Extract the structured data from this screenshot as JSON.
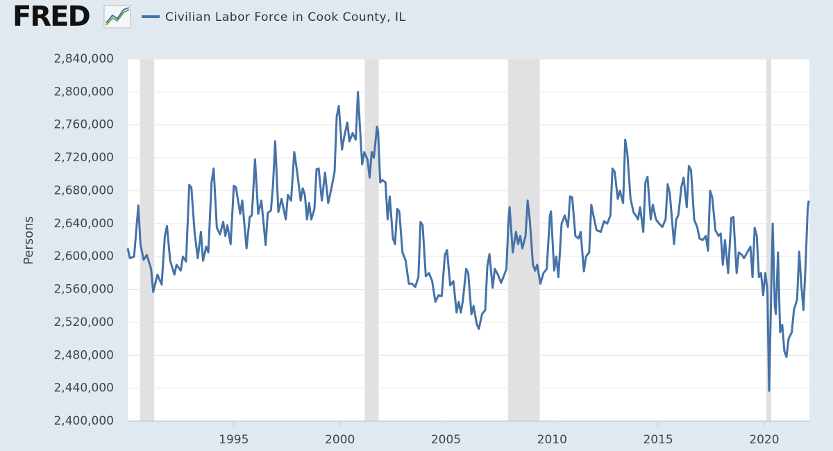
{
  "chart_data": {
    "type": "line",
    "logo": "FRED",
    "ylabel": "Persons",
    "xlim": [
      1990.0,
      2022.13
    ],
    "ylim": [
      2400000,
      2840000
    ],
    "xticks": [
      1995,
      2000,
      2005,
      2010,
      2015,
      2020
    ],
    "yticks": [
      {
        "value": 2400000,
        "label": "2,400,000"
      },
      {
        "value": 2440000,
        "label": "2,440,000"
      },
      {
        "value": 2480000,
        "label": "2,480,000"
      },
      {
        "value": 2520000,
        "label": "2,520,000"
      },
      {
        "value": 2560000,
        "label": "2,560,000"
      },
      {
        "value": 2600000,
        "label": "2,600,000"
      },
      {
        "value": 2640000,
        "label": "2,640,000"
      },
      {
        "value": 2680000,
        "label": "2,680,000"
      },
      {
        "value": 2720000,
        "label": "2,720,000"
      },
      {
        "value": 2760000,
        "label": "2,760,000"
      },
      {
        "value": 2800000,
        "label": "2,800,000"
      },
      {
        "value": 2840000,
        "label": "2,840,000"
      }
    ],
    "grid": true,
    "recessions": [
      [
        1990.58,
        1991.25
      ],
      [
        2001.17,
        2001.83
      ],
      [
        2007.92,
        2009.42
      ],
      [
        2020.1,
        2020.33
      ]
    ],
    "x": [
      1990.0,
      1990.1,
      1990.3,
      1990.5,
      1990.6,
      1990.75,
      1990.9,
      1991.1,
      1991.2,
      1991.4,
      1991.6,
      1991.75,
      1991.85,
      1992.0,
      1992.2,
      1992.3,
      1992.5,
      1992.6,
      1992.75,
      1992.9,
      1993.0,
      1993.15,
      1993.3,
      1993.45,
      1993.55,
      1993.7,
      1993.8,
      1993.95,
      1994.05,
      1994.2,
      1994.35,
      1994.5,
      1994.6,
      1994.7,
      1994.85,
      1995.0,
      1995.1,
      1995.3,
      1995.4,
      1995.6,
      1995.75,
      1995.85,
      1996.0,
      1996.15,
      1996.3,
      1996.5,
      1996.6,
      1996.75,
      1996.85,
      1996.95,
      1997.1,
      1997.25,
      1997.45,
      1997.55,
      1997.7,
      1997.85,
      1998.0,
      1998.15,
      1998.25,
      1998.35,
      1998.45,
      1998.55,
      1998.65,
      1998.8,
      1998.9,
      1999.0,
      1999.15,
      1999.3,
      1999.45,
      1999.6,
      1999.75,
      1999.85,
      1999.95,
      2000.1,
      2000.2,
      2000.35,
      2000.45,
      2000.6,
      2000.75,
      2000.85,
      2000.95,
      2001.05,
      2001.15,
      2001.3,
      2001.4,
      2001.5,
      2001.6,
      2001.75,
      2001.8,
      2001.9,
      2002.0,
      2002.15,
      2002.25,
      2002.35,
      2002.5,
      2002.6,
      2002.7,
      2002.8,
      2002.95,
      2003.1,
      2003.25,
      2003.4,
      2003.55,
      2003.7,
      2003.8,
      2003.9,
      2004.05,
      2004.2,
      2004.35,
      2004.5,
      2004.65,
      2004.8,
      2004.95,
      2005.05,
      2005.2,
      2005.35,
      2005.5,
      2005.6,
      2005.7,
      2005.8,
      2005.95,
      2006.05,
      2006.2,
      2006.3,
      2006.45,
      2006.55,
      2006.7,
      2006.85,
      2006.95,
      2007.05,
      2007.2,
      2007.3,
      2007.45,
      2007.6,
      2007.75,
      2007.85,
      2007.95,
      2008.0,
      2008.15,
      2008.3,
      2008.4,
      2008.5,
      2008.6,
      2008.75,
      2008.85,
      2008.95,
      2009.1,
      2009.2,
      2009.3,
      2009.45,
      2009.6,
      2009.75,
      2009.9,
      2009.95,
      2010.1,
      2010.2,
      2010.3,
      2010.45,
      2010.6,
      2010.75,
      2010.85,
      2010.95,
      2011.1,
      2011.25,
      2011.35,
      2011.5,
      2011.6,
      2011.75,
      2011.85,
      2011.95,
      2012.1,
      2012.3,
      2012.45,
      2012.6,
      2012.75,
      2012.85,
      2012.95,
      2013.1,
      2013.2,
      2013.35,
      2013.45,
      2013.55,
      2013.7,
      2013.85,
      2013.95,
      2014.05,
      2014.15,
      2014.3,
      2014.4,
      2014.5,
      2014.65,
      2014.75,
      2014.9,
      2015.05,
      2015.2,
      2015.35,
      2015.45,
      2015.55,
      2015.75,
      2015.85,
      2015.95,
      2016.1,
      2016.2,
      2016.35,
      2016.45,
      2016.55,
      2016.7,
      2016.85,
      2016.95,
      2017.1,
      2017.25,
      2017.35,
      2017.45,
      2017.55,
      2017.7,
      2017.85,
      2017.95,
      2018.05,
      2018.15,
      2018.3,
      2018.45,
      2018.55,
      2018.7,
      2018.8,
      2018.95,
      2019.05,
      2019.2,
      2019.35,
      2019.45,
      2019.55,
      2019.65,
      2019.75,
      2019.85,
      2019.95,
      2020.05,
      2020.15,
      2020.23,
      2020.4,
      2020.5,
      2020.55,
      2020.65,
      2020.75,
      2020.85,
      2020.95,
      2021.05,
      2021.15,
      2021.3,
      2021.4,
      2021.55,
      2021.65,
      2021.75,
      2021.85,
      2021.95,
      2022.05,
      2022.1
    ],
    "series": [
      {
        "name": "Civilian Labor Force in Cook County, IL",
        "color": "#4572a7",
        "values": [
          2610000,
          2598000,
          2600000,
          2662000,
          2615000,
          2596000,
          2602000,
          2585000,
          2557000,
          2578000,
          2566000,
          2625000,
          2637000,
          2595000,
          2578000,
          2590000,
          2583000,
          2600000,
          2594000,
          2687000,
          2684000,
          2630000,
          2598000,
          2630000,
          2595000,
          2612000,
          2605000,
          2690000,
          2707000,
          2635000,
          2627000,
          2642000,
          2625000,
          2638000,
          2615000,
          2686000,
          2684000,
          2652000,
          2668000,
          2610000,
          2648000,
          2650000,
          2718000,
          2652000,
          2668000,
          2614000,
          2653000,
          2656000,
          2688000,
          2740000,
          2654000,
          2670000,
          2645000,
          2675000,
          2668000,
          2727000,
          2700000,
          2668000,
          2683000,
          2675000,
          2645000,
          2665000,
          2645000,
          2658000,
          2706000,
          2707000,
          2668000,
          2702000,
          2665000,
          2683000,
          2703000,
          2770000,
          2783000,
          2730000,
          2745000,
          2763000,
          2740000,
          2750000,
          2742000,
          2800000,
          2755000,
          2712000,
          2727000,
          2718000,
          2696000,
          2727000,
          2720000,
          2758000,
          2752000,
          2690000,
          2693000,
          2690000,
          2645000,
          2673000,
          2622000,
          2615000,
          2658000,
          2655000,
          2605000,
          2595000,
          2567000,
          2567000,
          2563000,
          2575000,
          2642000,
          2638000,
          2576000,
          2580000,
          2570000,
          2545000,
          2553000,
          2552000,
          2602000,
          2608000,
          2565000,
          2570000,
          2532000,
          2545000,
          2532000,
          2547000,
          2585000,
          2580000,
          2530000,
          2540000,
          2518000,
          2512000,
          2530000,
          2535000,
          2588000,
          2603000,
          2562000,
          2585000,
          2578000,
          2568000,
          2578000,
          2585000,
          2645000,
          2660000,
          2605000,
          2630000,
          2615000,
          2625000,
          2610000,
          2625000,
          2668000,
          2645000,
          2590000,
          2583000,
          2590000,
          2567000,
          2580000,
          2585000,
          2650000,
          2655000,
          2583000,
          2600000,
          2575000,
          2640000,
          2650000,
          2636000,
          2673000,
          2672000,
          2625000,
          2622000,
          2630000,
          2582000,
          2600000,
          2605000,
          2663000,
          2650000,
          2632000,
          2630000,
          2643000,
          2640000,
          2650000,
          2707000,
          2703000,
          2670000,
          2680000,
          2665000,
          2742000,
          2725000,
          2670000,
          2653000,
          2650000,
          2645000,
          2660000,
          2630000,
          2690000,
          2697000,
          2645000,
          2663000,
          2645000,
          2640000,
          2636000,
          2645000,
          2688000,
          2677000,
          2615000,
          2645000,
          2650000,
          2685000,
          2696000,
          2660000,
          2710000,
          2705000,
          2645000,
          2635000,
          2622000,
          2620000,
          2625000,
          2607000,
          2680000,
          2672000,
          2632000,
          2625000,
          2628000,
          2590000,
          2620000,
          2580000,
          2647000,
          2648000,
          2580000,
          2605000,
          2602000,
          2598000,
          2605000,
          2612000,
          2575000,
          2635000,
          2625000,
          2575000,
          2580000,
          2553000,
          2580000,
          2560000,
          2437000,
          2640000,
          2540000,
          2530000,
          2605000,
          2508000,
          2517000,
          2485000,
          2478000,
          2500000,
          2508000,
          2535000,
          2548000,
          2606000,
          2565000,
          2535000,
          2590000,
          2658000,
          2668000
        ]
      }
    ]
  }
}
